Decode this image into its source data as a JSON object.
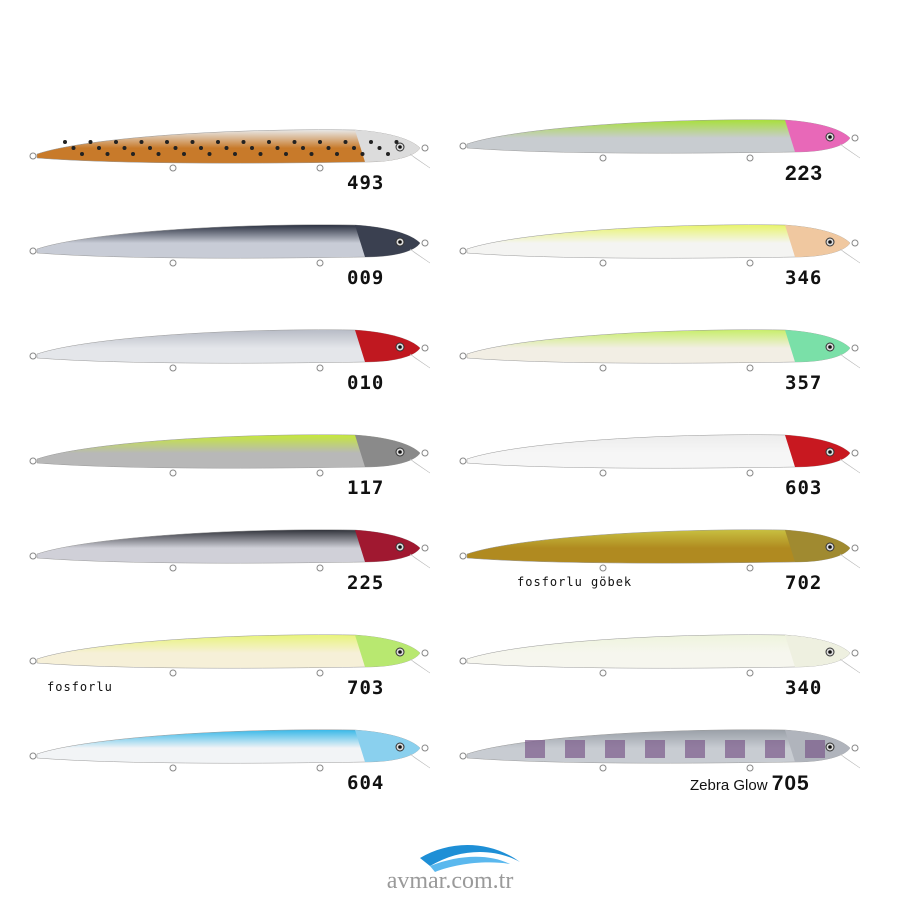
{
  "lures": [
    {
      "code": "493",
      "top": "#e8e8e8",
      "belly": "#c87a2a",
      "head": "#dcdcdc",
      "spots": true,
      "col": "left",
      "row": 0
    },
    {
      "code": "009",
      "top": "#2a3040",
      "belly": "#c8ccd6",
      "head": "#3a4050",
      "col": "left",
      "row": 1
    },
    {
      "code": "010",
      "top": "#b8bcc6",
      "belly": "#e4e6ea",
      "head": "#c01820",
      "col": "left",
      "row": 2
    },
    {
      "code": "117",
      "top": "#c6e83a",
      "belly": "#b8b8b8",
      "head": "#8a8a8a",
      "col": "left",
      "row": 3
    },
    {
      "code": "225",
      "top": "#30323a",
      "belly": "#d0d0d8",
      "head": "#a01830",
      "col": "left",
      "row": 4
    },
    {
      "code": "703",
      "top": "#e8f47a",
      "belly": "#f6f0d8",
      "head": "#b8e870",
      "col": "left",
      "row": 5,
      "note": "fosforlu"
    },
    {
      "code": "604",
      "top": "#38b8e8",
      "belly": "#f2f4f6",
      "head": "#8ad0ee",
      "col": "left",
      "row": 6
    },
    {
      "code": "223",
      "top": "#a8e03a",
      "belly": "#c8ccd0",
      "head": "#e868b8",
      "col": "right",
      "row": 0,
      "bold": true
    },
    {
      "code": "346",
      "top": "#e8f46a",
      "belly": "#f4f4f2",
      "head": "#f0c8a0",
      "col": "right",
      "row": 1
    },
    {
      "code": "357",
      "top": "#c8ee6a",
      "belly": "#f2eee4",
      "head": "#7ae0a8",
      "col": "right",
      "row": 2
    },
    {
      "code": "603",
      "top": "#ececec",
      "belly": "#f6f6f6",
      "head": "#c81820",
      "col": "right",
      "row": 3
    },
    {
      "code": "702",
      "top": "#c8c040",
      "belly": "#b08a20",
      "head": "#a08a30",
      "col": "right",
      "row": 4,
      "note": "fosforlu göbek"
    },
    {
      "code": "340",
      "top": "#eef4dc",
      "belly": "#f6f6ee",
      "head": "#eef0e0",
      "col": "right",
      "row": 5
    },
    {
      "code": "705",
      "top": "#9aa0a8",
      "belly": "#c8ccd2",
      "head": "#b0b4bc",
      "col": "right",
      "row": 6,
      "prefix": "Zebra Glow",
      "bold": true
    }
  ],
  "footer": {
    "site": "avmar.com.tr",
    "logo_color": "#1e8fd6"
  }
}
